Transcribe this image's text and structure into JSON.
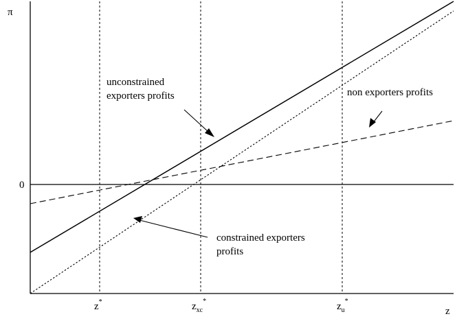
{
  "diagram": {
    "axes": {
      "y_label": "π",
      "x_label": "z",
      "zero_label": "0"
    },
    "thresholds": [
      {
        "id": "z-star",
        "base": "z",
        "sub": "",
        "sup": "*"
      },
      {
        "id": "z-xc-star",
        "base": "z",
        "sub": "xc",
        "sup": "*"
      },
      {
        "id": "z-u-star",
        "base": "z",
        "sub": "u",
        "sup": "*"
      }
    ],
    "curve_labels": {
      "unconstrained": [
        "unconstrained",
        "exporters profits"
      ],
      "non_exporters": [
        "non exporters profits"
      ],
      "constrained": [
        "constrained exporters",
        "profits"
      ]
    },
    "line_styles": {
      "unconstrained": "solid",
      "non_exporters": "dashed",
      "constrained": "dotted"
    },
    "color": "#000000"
  }
}
